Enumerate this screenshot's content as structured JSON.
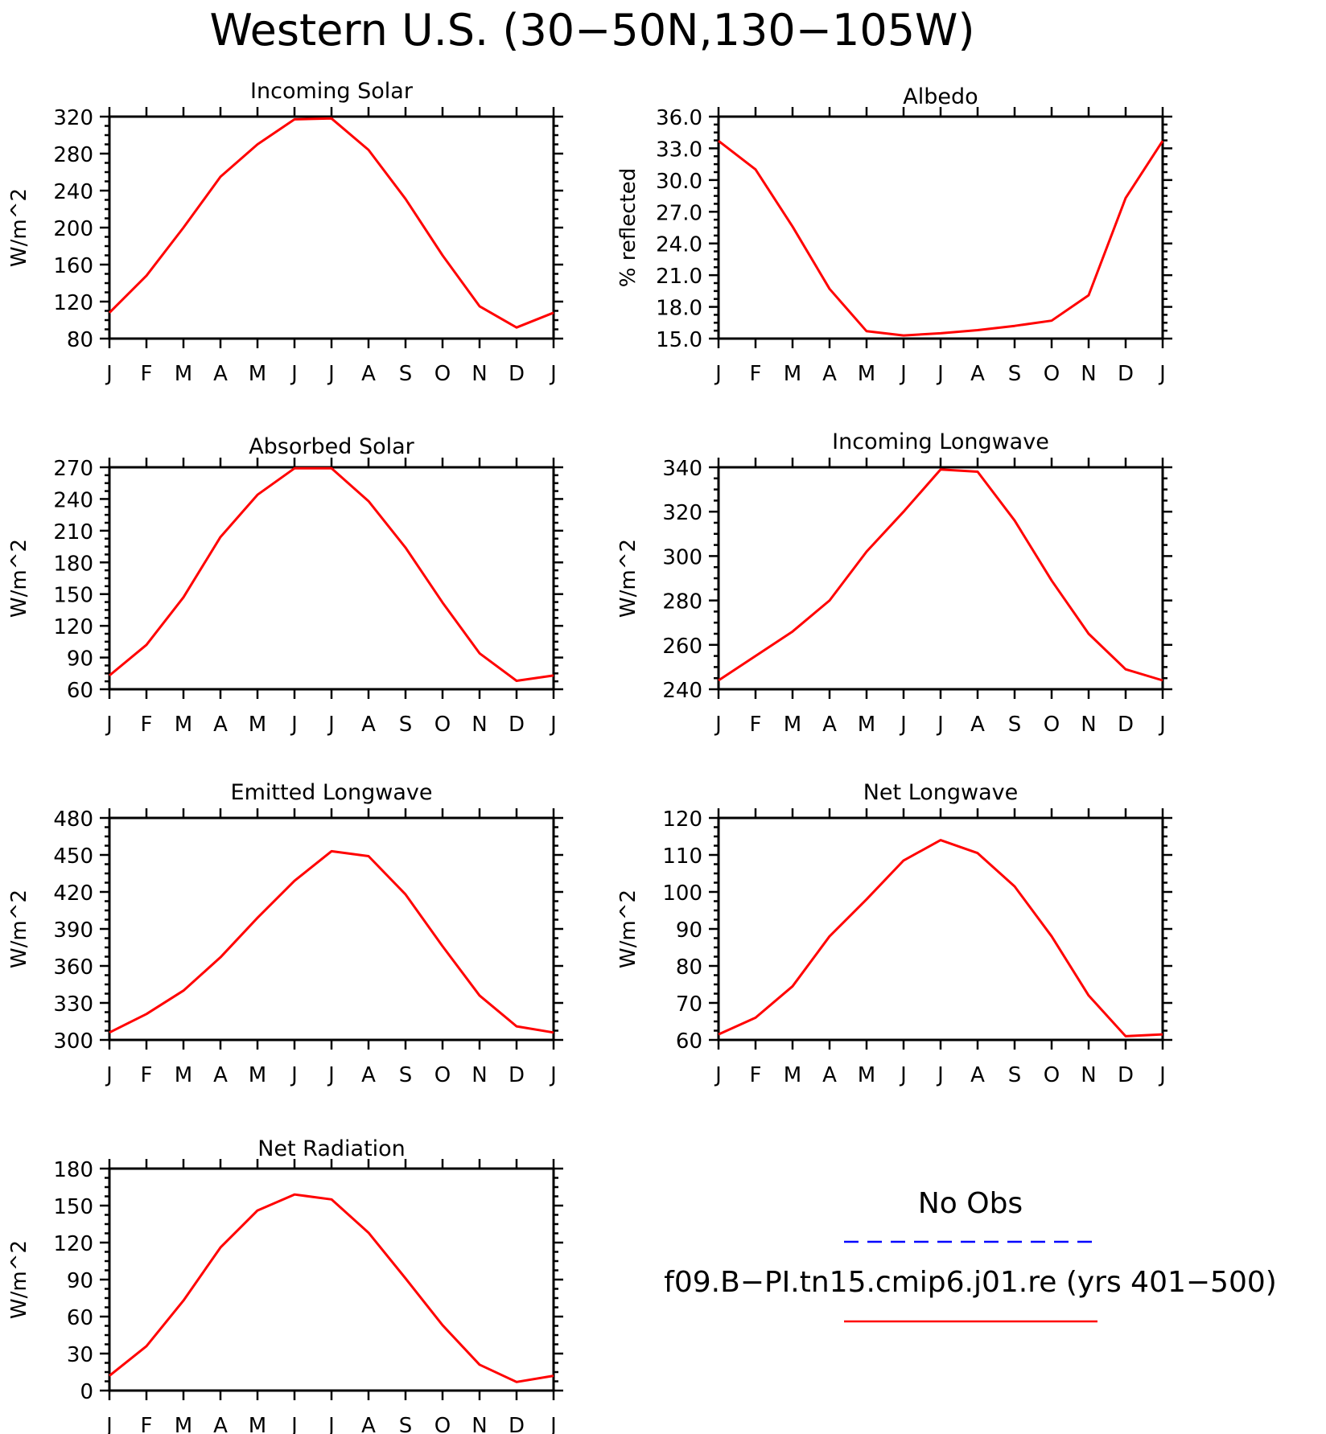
{
  "title": "Western U.S. (30−50N,130−105W)",
  "colors": {
    "model": "#ff0000",
    "obs": "#0000ff"
  },
  "legend": {
    "obs_label": "No Obs",
    "model_label": "f09.B−PI.tn15.cmip6.j01.re (yrs 401−500)"
  },
  "chart_data": [
    {
      "type": "line",
      "title": "Incoming Solar",
      "ylabel": "W/m^2",
      "categories": [
        "J",
        "F",
        "M",
        "A",
        "M",
        "J",
        "J",
        "A",
        "S",
        "O",
        "N",
        "D",
        "J"
      ],
      "yticks": [
        "80",
        "120",
        "160",
        "200",
        "240",
        "280",
        "320"
      ],
      "ylim": [
        80,
        320
      ],
      "grid": false,
      "series": [
        {
          "values": [
            108,
            148,
            200,
            255,
            290,
            317,
            318,
            284,
            231,
            170,
            115,
            92,
            108
          ]
        }
      ]
    },
    {
      "type": "line",
      "title": "Albedo",
      "ylabel": "% reflected",
      "categories": [
        "J",
        "F",
        "M",
        "A",
        "M",
        "J",
        "J",
        "A",
        "S",
        "O",
        "N",
        "D",
        "J"
      ],
      "yticks": [
        "15.0",
        "18.0",
        "21.0",
        "24.0",
        "27.0",
        "30.0",
        "33.0",
        "36.0"
      ],
      "ylim": [
        15,
        36
      ],
      "grid": false,
      "series": [
        {
          "values": [
            33.7,
            31.0,
            25.6,
            19.7,
            15.7,
            15.3,
            15.5,
            15.8,
            16.2,
            16.7,
            19.1,
            28.3,
            33.7
          ]
        }
      ]
    },
    {
      "type": "line",
      "title": "Absorbed Solar",
      "ylabel": "W/m^2",
      "categories": [
        "J",
        "F",
        "M",
        "A",
        "M",
        "J",
        "J",
        "A",
        "S",
        "O",
        "N",
        "D",
        "J"
      ],
      "yticks": [
        "60",
        "90",
        "120",
        "150",
        "180",
        "210",
        "240",
        "270"
      ],
      "ylim": [
        60,
        270
      ],
      "grid": false,
      "series": [
        {
          "values": [
            73,
            102,
            147,
            204,
            244,
            269,
            269,
            238,
            194,
            142,
            94,
            68,
            73
          ]
        }
      ]
    },
    {
      "type": "line",
      "title": "Incoming Longwave",
      "ylabel": "W/m^2",
      "categories": [
        "J",
        "F",
        "M",
        "A",
        "M",
        "J",
        "J",
        "A",
        "S",
        "O",
        "N",
        "D",
        "J"
      ],
      "yticks": [
        "240",
        "260",
        "280",
        "300",
        "320",
        "340"
      ],
      "ylim": [
        240,
        340
      ],
      "grid": false,
      "series": [
        {
          "values": [
            244,
            255,
            266,
            280,
            302,
            320,
            339,
            338,
            316,
            289,
            265,
            249,
            244
          ]
        }
      ]
    },
    {
      "type": "line",
      "title": "Emitted Longwave",
      "ylabel": "W/m^2",
      "categories": [
        "J",
        "F",
        "M",
        "A",
        "M",
        "J",
        "J",
        "A",
        "S",
        "O",
        "N",
        "D",
        "J"
      ],
      "yticks": [
        "300",
        "330",
        "360",
        "390",
        "420",
        "450",
        "480"
      ],
      "ylim": [
        300,
        480
      ],
      "grid": false,
      "series": [
        {
          "values": [
            306,
            321,
            340,
            367,
            399,
            429,
            453,
            449,
            418,
            376,
            336,
            311,
            306
          ]
        }
      ]
    },
    {
      "type": "line",
      "title": "Net Longwave",
      "ylabel": "W/m^2",
      "categories": [
        "J",
        "F",
        "M",
        "A",
        "M",
        "J",
        "J",
        "A",
        "S",
        "O",
        "N",
        "D",
        "J"
      ],
      "yticks": [
        "60",
        "70",
        "80",
        "90",
        "100",
        "110",
        "120"
      ],
      "ylim": [
        60,
        120
      ],
      "grid": false,
      "series": [
        {
          "values": [
            61.5,
            66,
            74.5,
            88,
            98,
            108.5,
            114,
            110.5,
            101.5,
            88,
            72,
            61,
            61.5
          ]
        }
      ]
    },
    {
      "type": "line",
      "title": "Net Radiation",
      "ylabel": "W/m^2",
      "categories": [
        "J",
        "F",
        "M",
        "A",
        "M",
        "J",
        "J",
        "A",
        "S",
        "O",
        "N",
        "D",
        "J"
      ],
      "yticks": [
        "0",
        "30",
        "60",
        "90",
        "120",
        "150",
        "180"
      ],
      "ylim": [
        0,
        180
      ],
      "grid": false,
      "series": [
        {
          "values": [
            12,
            36,
            73,
            116,
            146,
            159,
            155,
            128,
            91,
            53,
            21,
            7,
            12
          ]
        }
      ]
    }
  ]
}
